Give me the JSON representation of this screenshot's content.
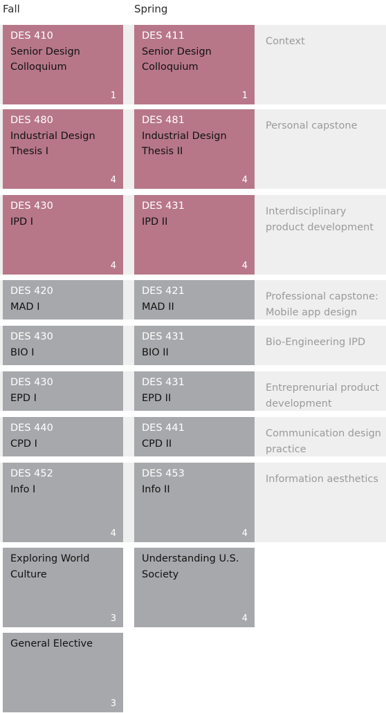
{
  "headers": {
    "fall": "Fall",
    "spring": "Spring"
  },
  "rows": [
    {
      "desc": "Context",
      "fall": {
        "code": "DES 410",
        "name": "Senior Design Colloquium",
        "credits": "1",
        "color": "pink"
      },
      "spring": {
        "code": "DES 411",
        "name": "Senior Design Colloquium",
        "credits": "1",
        "color": "pink"
      }
    },
    {
      "desc": "Personal capstone",
      "fall": {
        "code": "DES 480",
        "name": "Industrial Design Thesis I",
        "credits": "4",
        "color": "pink"
      },
      "spring": {
        "code": "DES 481",
        "name": "Industrial Design Thesis II",
        "credits": "4",
        "color": "pink"
      }
    },
    {
      "desc": "Interdisciplinary product development",
      "fall": {
        "code": "DES 430",
        "name": "IPD I",
        "credits": "4",
        "color": "pink"
      },
      "spring": {
        "code": "DES 431",
        "name": "IPD II",
        "credits": "4",
        "color": "pink"
      }
    },
    {
      "desc": "Professional capstone: Mobile app design",
      "fall": {
        "code": "DES 420",
        "name": "MAD I",
        "credits": "",
        "color": "gray"
      },
      "spring": {
        "code": "DES 421",
        "name": "MAD II",
        "credits": "",
        "color": "gray"
      }
    },
    {
      "desc": "Bio-Engineering IPD",
      "fall": {
        "code": "DES 430",
        "name": "BIO I",
        "credits": "",
        "color": "gray"
      },
      "spring": {
        "code": "DES 431",
        "name": "BIO II",
        "credits": "",
        "color": "gray"
      }
    },
    {
      "desc": "Entreprenurial product development",
      "fall": {
        "code": "DES 430",
        "name": "EPD I",
        "credits": "",
        "color": "gray"
      },
      "spring": {
        "code": "DES 431",
        "name": "EPD II",
        "credits": "",
        "color": "gray"
      }
    },
    {
      "desc": "Communication design practice",
      "fall": {
        "code": "DES 440",
        "name": "CPD I",
        "credits": "",
        "color": "gray"
      },
      "spring": {
        "code": "DES 441",
        "name": "CPD II",
        "credits": "",
        "color": "gray"
      }
    },
    {
      "desc": "Information aesthetics",
      "fall": {
        "code": "DES 452",
        "name": "Info I",
        "credits": "4",
        "color": "gray"
      },
      "spring": {
        "code": "DES 453",
        "name": "Info II",
        "credits": "4",
        "color": "gray"
      }
    },
    {
      "desc": "",
      "fall": {
        "code": "",
        "name": "Exploring World Culture",
        "credits": "3",
        "color": "gray"
      },
      "spring": {
        "code": "",
        "name": "Understanding U.S. Society",
        "credits": "4",
        "color": "gray"
      }
    },
    {
      "desc": "",
      "fall": {
        "code": "",
        "name": "General Elective",
        "credits": "3",
        "color": "gray"
      },
      "spring": null
    }
  ]
}
